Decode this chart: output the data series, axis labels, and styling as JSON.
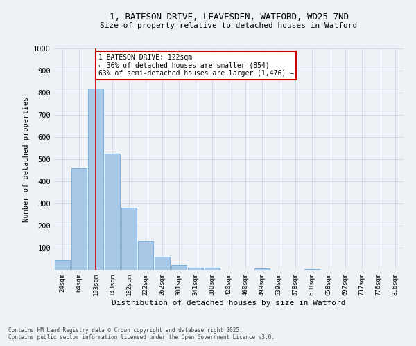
{
  "title_line1": "1, BATESON DRIVE, LEAVESDEN, WATFORD, WD25 7ND",
  "title_line2": "Size of property relative to detached houses in Watford",
  "xlabel": "Distribution of detached houses by size in Watford",
  "ylabel": "Number of detached properties",
  "categories": [
    "24sqm",
    "64sqm",
    "103sqm",
    "143sqm",
    "182sqm",
    "222sqm",
    "262sqm",
    "301sqm",
    "341sqm",
    "380sqm",
    "420sqm",
    "460sqm",
    "499sqm",
    "539sqm",
    "578sqm",
    "618sqm",
    "658sqm",
    "697sqm",
    "737sqm",
    "776sqm",
    "816sqm"
  ],
  "values": [
    45,
    460,
    820,
    525,
    280,
    130,
    58,
    22,
    10,
    10,
    0,
    0,
    5,
    0,
    0,
    3,
    0,
    0,
    0,
    0,
    0
  ],
  "bar_color": "#a8c8e8",
  "bar_edge_color": "#5a9fd4",
  "annotation_text": "1 BATESON DRIVE: 122sqm\n← 36% of detached houses are smaller (854)\n63% of semi-detached houses are larger (1,476) →",
  "annotation_box_color": "#ffffff",
  "annotation_box_edge": "#cc0000",
  "line_color": "#cc0000",
  "ylim": [
    0,
    1000
  ],
  "yticks": [
    0,
    100,
    200,
    300,
    400,
    500,
    600,
    700,
    800,
    900,
    1000
  ],
  "footer_line1": "Contains HM Land Registry data © Crown copyright and database right 2025.",
  "footer_line2": "Contains public sector information licensed under the Open Government Licence v3.0.",
  "bg_color": "#eef2f7",
  "plot_bg_color": "#eef2f7",
  "grid_color": "#c8d0dc"
}
